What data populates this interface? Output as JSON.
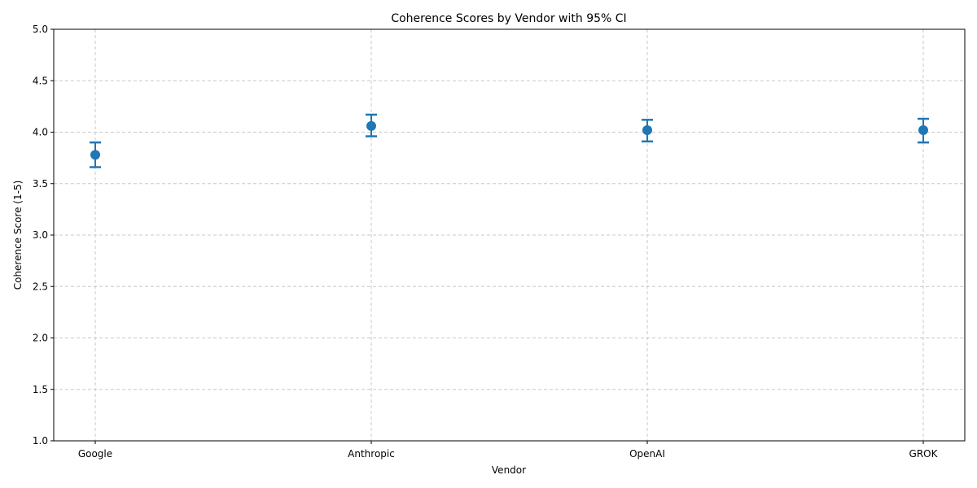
{
  "chart_data": {
    "type": "scatter",
    "title": "Coherence Scores by Vendor with 95% CI",
    "xlabel": "Vendor",
    "ylabel": "Coherence Score (1-5)",
    "categories": [
      "Google",
      "Anthropic",
      "OpenAI",
      "GROK"
    ],
    "values": [
      3.78,
      4.06,
      4.02,
      4.02
    ],
    "ci_lower": [
      3.66,
      3.96,
      3.91,
      3.9
    ],
    "ci_upper": [
      3.9,
      4.17,
      4.12,
      4.13
    ],
    "ylim": [
      1.0,
      5.0
    ],
    "yticks": [
      "1.0",
      "1.5",
      "2.0",
      "2.5",
      "3.0",
      "3.5",
      "4.0",
      "4.5",
      "5.0"
    ],
    "grid": true,
    "color": "#1f77b4",
    "grid_color": "#c8c8c8"
  }
}
